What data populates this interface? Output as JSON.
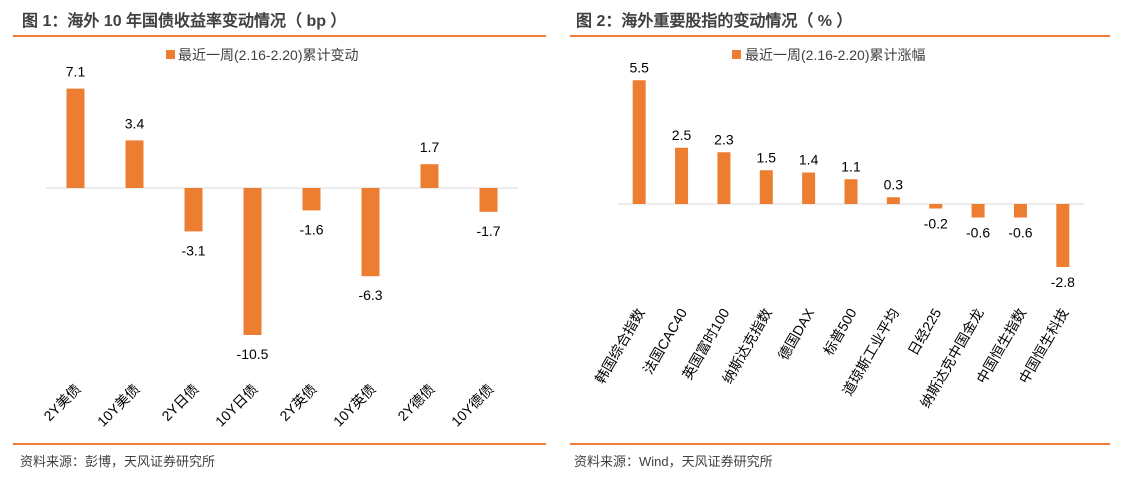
{
  "accent_color": "#ED7D31",
  "chart_data": [
    {
      "type": "bar",
      "title": "图 1：海外 10 年国债收益率变动情况（ bp ）",
      "legend": "最近一周(2.16-2.20)累计变动",
      "categories": [
        "2Y美债",
        "10Y美债",
        "2Y日债",
        "10Y日债",
        "2Y英债",
        "10Y英债",
        "2Y德债",
        "10Y德债"
      ],
      "values": [
        7.1,
        3.4,
        -3.1,
        -10.5,
        -1.6,
        -6.3,
        1.7,
        -1.7
      ],
      "value_labels": [
        "7.1",
        "3.4",
        "-3.1",
        "-10.5",
        "-1.6",
        "-6.3",
        "1.7",
        "-1.7"
      ],
      "xlabel": "",
      "ylabel": "",
      "source": "资料来源：彭博，天风证券研究所"
    },
    {
      "type": "bar",
      "title": "图 2：海外重要股指的变动情况（ % ）",
      "legend": "最近一周(2.16-2.20)累计涨幅",
      "categories": [
        "韩国综合指数",
        "法国CAC40",
        "英国富时100",
        "纳斯达克指数",
        "德国DAX",
        "标普500",
        "道琼斯工业平均",
        "日经225",
        "纳斯达克中国金龙",
        "中国恒生指数",
        "中国恒生科技"
      ],
      "values": [
        5.5,
        2.5,
        2.3,
        1.5,
        1.4,
        1.1,
        0.3,
        -0.2,
        -0.6,
        -0.6,
        -2.8
      ],
      "value_labels": [
        "5.5",
        "2.5",
        "2.3",
        "1.5",
        "1.4",
        "1.1",
        "0.3",
        "-0.2",
        "-0.6",
        "-0.6",
        "-2.8"
      ],
      "xlabel": "",
      "ylabel": "",
      "source": "资料来源：Wind，天风证券研究所"
    }
  ]
}
